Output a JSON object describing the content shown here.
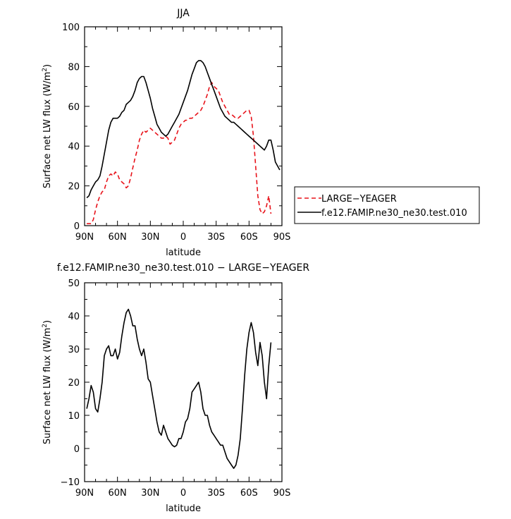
{
  "chart_data": [
    {
      "type": "line",
      "title": "JJA",
      "xlabel": "latitude",
      "ylabel": "Surface net LW flux (W/m",
      "ylabel_sup": "2",
      "ylabel_close": ")",
      "xlim": [
        90,
        -90
      ],
      "ylim": [
        0,
        100
      ],
      "xticks": [
        90,
        60,
        30,
        0,
        -30,
        -60,
        -90
      ],
      "xticklabels": [
        "90N",
        "60N",
        "30N",
        "0",
        "30S",
        "60S",
        "90S"
      ],
      "yticks": [
        0,
        20,
        40,
        60,
        80,
        100
      ],
      "yticklabels": [
        "0",
        "20",
        "40",
        "60",
        "80",
        "100"
      ],
      "legend_position": "right",
      "series": [
        {
          "name": "LARGE−YEAGER",
          "color": "#e8131b",
          "dash": "dashed",
          "x": [
            88,
            86,
            84,
            82,
            80,
            78,
            76,
            74,
            72,
            70,
            68,
            66,
            64,
            62,
            60,
            58,
            56,
            54,
            52,
            50,
            48,
            46,
            44,
            42,
            40,
            38,
            36,
            34,
            32,
            30,
            28,
            26,
            24,
            22,
            20,
            18,
            16,
            14,
            12,
            10,
            8,
            6,
            4,
            2,
            0,
            -2,
            -4,
            -6,
            -8,
            -10,
            -12,
            -14,
            -16,
            -18,
            -20,
            -22,
            -24,
            -26,
            -28,
            -30,
            -32,
            -34,
            -36,
            -38,
            -40,
            -42,
            -44,
            -46,
            -48,
            -50,
            -52,
            -54,
            -56,
            -58,
            -60,
            -62,
            -64,
            -66,
            -68,
            -70,
            -72,
            -74,
            -76,
            -78,
            -80
          ],
          "y": [
            1,
            1,
            1,
            3,
            8,
            12,
            15,
            17,
            18,
            22,
            25,
            26,
            25,
            27,
            26,
            23,
            22,
            21,
            19,
            20,
            24,
            29,
            34,
            38,
            43,
            46,
            48,
            47,
            48,
            49,
            48,
            47,
            46,
            45,
            44,
            44,
            45,
            44,
            41,
            42,
            43,
            46,
            49,
            51,
            52,
            53,
            53,
            54,
            54,
            55,
            56,
            57,
            58,
            60,
            63,
            66,
            70,
            72,
            70,
            69,
            68,
            65,
            62,
            60,
            58,
            56,
            56,
            55,
            54,
            54,
            55,
            56,
            57,
            58,
            58,
            55,
            45,
            30,
            15,
            8,
            6,
            7,
            10,
            15,
            6
          ]
        },
        {
          "name": "f.e12.FAMIP.ne30_ne30.test.010",
          "color": "#000000",
          "dash": "solid",
          "x": [
            88,
            86,
            84,
            82,
            80,
            78,
            76,
            74,
            72,
            70,
            68,
            66,
            64,
            62,
            60,
            58,
            56,
            54,
            52,
            50,
            48,
            46,
            44,
            42,
            40,
            38,
            36,
            34,
            32,
            30,
            28,
            26,
            24,
            22,
            20,
            18,
            16,
            14,
            12,
            10,
            8,
            6,
            4,
            2,
            0,
            -2,
            -4,
            -6,
            -8,
            -10,
            -12,
            -14,
            -16,
            -18,
            -20,
            -22,
            -24,
            -26,
            -28,
            -30,
            -32,
            -34,
            -36,
            -38,
            -40,
            -42,
            -44,
            -46,
            -48,
            -50,
            -52,
            -54,
            -56,
            -58,
            -60,
            -62,
            -64,
            -66,
            -68,
            -70,
            -72,
            -74,
            -76,
            -78,
            -80,
            -82,
            -84,
            -86,
            -88
          ],
          "y": [
            14,
            15,
            18,
            20,
            22,
            23,
            25,
            30,
            36,
            42,
            48,
            52,
            54,
            54,
            54,
            55,
            57,
            58,
            61,
            62,
            63,
            65,
            68,
            72,
            74,
            75,
            75,
            72,
            68,
            64,
            59,
            55,
            51,
            49,
            47,
            46,
            45,
            46,
            48,
            50,
            52,
            54,
            56,
            59,
            62,
            65,
            68,
            72,
            76,
            79,
            82,
            83,
            83,
            82,
            80,
            77,
            74,
            71,
            68,
            65,
            62,
            59,
            57,
            55,
            54,
            53,
            52,
            52,
            51,
            50,
            49,
            48,
            47,
            46,
            45,
            44,
            43,
            42,
            41,
            40,
            39,
            38,
            40,
            43,
            43,
            38,
            32,
            30,
            28
          ]
        }
      ]
    },
    {
      "type": "line",
      "title": "f.e12.FAMIP.ne30_ne30.test.010 − LARGE−YEAGER",
      "xlabel": "latitude",
      "ylabel": "Surface net LW flux (W/m",
      "ylabel_sup": "2",
      "ylabel_close": ")",
      "xlim": [
        90,
        -90
      ],
      "ylim": [
        -10,
        50
      ],
      "xticks": [
        90,
        60,
        30,
        0,
        -30,
        -60,
        -90
      ],
      "xticklabels": [
        "90N",
        "60N",
        "30N",
        "0",
        "30S",
        "60S",
        "90S"
      ],
      "yticks": [
        -10,
        0,
        10,
        20,
        30,
        40,
        50
      ],
      "yticklabels": [
        "−10",
        "0",
        "10",
        "20",
        "30",
        "40",
        "50"
      ],
      "series": [
        {
          "color": "#000000",
          "dash": "solid",
          "x": [
            88,
            86,
            84,
            82,
            80,
            78,
            76,
            74,
            72,
            70,
            68,
            66,
            64,
            62,
            60,
            58,
            56,
            54,
            52,
            50,
            48,
            46,
            44,
            42,
            40,
            38,
            36,
            34,
            32,
            30,
            28,
            26,
            24,
            22,
            20,
            18,
            16,
            14,
            12,
            10,
            8,
            6,
            4,
            2,
            0,
            -2,
            -4,
            -6,
            -8,
            -10,
            -12,
            -14,
            -16,
            -18,
            -20,
            -22,
            -24,
            -26,
            -28,
            -30,
            -32,
            -34,
            -36,
            -38,
            -40,
            -42,
            -44,
            -46,
            -48,
            -50,
            -52,
            -54,
            -56,
            -58,
            -60,
            -62,
            -64,
            -66,
            -68,
            -70,
            -72,
            -74,
            -76,
            -78,
            -80
          ],
          "y": [
            12,
            15,
            19,
            17,
            12,
            11,
            15,
            20,
            28,
            30,
            31,
            28,
            28,
            30,
            27,
            29,
            34,
            38,
            41,
            42,
            40,
            37,
            37,
            33,
            30,
            28,
            30,
            26,
            21,
            20,
            16,
            12,
            8,
            5,
            4,
            7,
            5,
            3,
            2,
            1,
            0.5,
            1,
            3,
            3,
            5,
            8,
            9,
            12,
            17,
            18,
            19,
            20,
            17,
            12,
            10,
            10,
            7,
            5,
            4,
            3,
            2,
            1,
            1,
            -1,
            -3,
            -4,
            -5,
            -6,
            -5,
            -2,
            3,
            12,
            22,
            30,
            35,
            38,
            35,
            29,
            25,
            32,
            28,
            20,
            15,
            25,
            32
          ]
        }
      ]
    }
  ]
}
